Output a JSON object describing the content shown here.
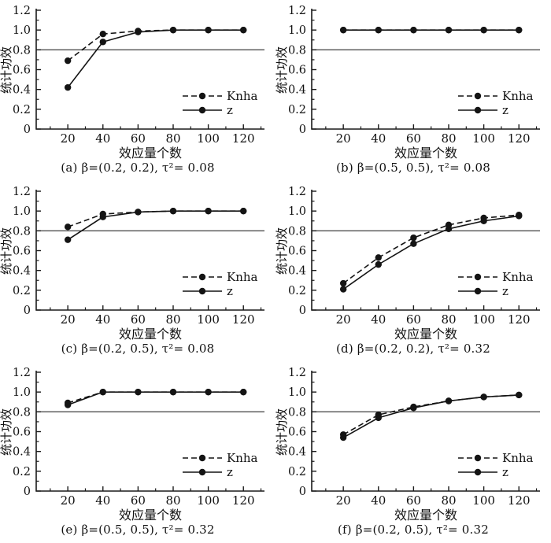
{
  "style": {
    "series_color": "#141414",
    "axis_color": "#1a1a1a",
    "reference_line_color": "#4f4f4f",
    "background": "#ffffff"
  },
  "chart_data": [
    {
      "id": "a",
      "type": "line",
      "title": "(a) β=(0.2, 0.2), τ²= 0.08",
      "xlabel": "效应量个数",
      "ylabel": "统计功效",
      "x": [
        20,
        40,
        60,
        80,
        100,
        120
      ],
      "xticks": [
        20,
        40,
        60,
        80,
        100,
        120
      ],
      "yticks": [
        0,
        0.2,
        0.4,
        0.6,
        0.8,
        1.0,
        1.2
      ],
      "xlim": [
        2,
        132
      ],
      "ylim": [
        0,
        1.2
      ],
      "grid": false,
      "reference_line_y": 0.8,
      "legend_position": "lower right",
      "series": [
        {
          "name": "Knha",
          "line": "dashed",
          "marker": "circle",
          "values": [
            0.69,
            0.96,
            0.99,
            1.0,
            1.0,
            1.0
          ]
        },
        {
          "name": "z",
          "line": "solid",
          "marker": "circle",
          "values": [
            0.42,
            0.88,
            0.98,
            1.0,
            1.0,
            1.0
          ]
        }
      ]
    },
    {
      "id": "b",
      "type": "line",
      "title": "(b) β=(0.5, 0.5), τ²= 0.08",
      "xlabel": "效应量个数",
      "ylabel": "统计功效",
      "x": [
        20,
        40,
        60,
        80,
        100,
        120
      ],
      "xticks": [
        20,
        40,
        60,
        80,
        100,
        120
      ],
      "yticks": [
        0,
        0.2,
        0.4,
        0.6,
        0.8,
        1.0,
        1.2
      ],
      "xlim": [
        2,
        132
      ],
      "ylim": [
        0,
        1.2
      ],
      "grid": false,
      "reference_line_y": 0.8,
      "legend_position": "lower right",
      "series": [
        {
          "name": "Knha",
          "line": "dashed",
          "marker": "circle",
          "values": [
            1.0,
            1.0,
            1.0,
            1.0,
            1.0,
            1.0
          ]
        },
        {
          "name": "z",
          "line": "solid",
          "marker": "circle",
          "values": [
            1.0,
            1.0,
            1.0,
            1.0,
            1.0,
            1.0
          ]
        }
      ]
    },
    {
      "id": "c",
      "type": "line",
      "title": "(c) β=(0.2, 0.5), τ²= 0.08",
      "xlabel": "效应量个数",
      "ylabel": "统计功效",
      "x": [
        20,
        40,
        60,
        80,
        100,
        120
      ],
      "xticks": [
        20,
        40,
        60,
        80,
        100,
        120
      ],
      "yticks": [
        0,
        0.2,
        0.4,
        0.6,
        0.8,
        1.0,
        1.2
      ],
      "xlim": [
        2,
        132
      ],
      "ylim": [
        0,
        1.2
      ],
      "grid": false,
      "reference_line_y": 0.8,
      "legend_position": "lower right",
      "series": [
        {
          "name": "Knha",
          "line": "dashed",
          "marker": "circle",
          "values": [
            0.84,
            0.97,
            0.99,
            1.0,
            1.0,
            1.0
          ]
        },
        {
          "name": "z",
          "line": "solid",
          "marker": "circle",
          "values": [
            0.71,
            0.94,
            0.99,
            1.0,
            1.0,
            1.0
          ]
        }
      ]
    },
    {
      "id": "d",
      "type": "line",
      "title": "(d) β=(0.2, 0.2), τ²= 0.32",
      "xlabel": "效应量个数",
      "ylabel": "统计功效",
      "x": [
        20,
        40,
        60,
        80,
        100,
        120
      ],
      "xticks": [
        20,
        40,
        60,
        80,
        100,
        120
      ],
      "yticks": [
        0,
        0.2,
        0.4,
        0.6,
        0.8,
        1.0,
        1.2
      ],
      "xlim": [
        2,
        132
      ],
      "ylim": [
        0,
        1.2
      ],
      "grid": false,
      "reference_line_y": 0.8,
      "legend_position": "lower right",
      "series": [
        {
          "name": "Knha",
          "line": "dashed",
          "marker": "circle",
          "values": [
            0.27,
            0.53,
            0.73,
            0.86,
            0.93,
            0.96
          ]
        },
        {
          "name": "z",
          "line": "solid",
          "marker": "circle",
          "values": [
            0.21,
            0.46,
            0.67,
            0.82,
            0.9,
            0.95
          ]
        }
      ]
    },
    {
      "id": "e",
      "type": "line",
      "title": "(e) β=(0.5, 0.5), τ²= 0.32",
      "xlabel": "效应量个数",
      "ylabel": "统计功效",
      "x": [
        20,
        40,
        60,
        80,
        100,
        120
      ],
      "xticks": [
        20,
        40,
        60,
        80,
        100,
        120
      ],
      "yticks": [
        0,
        0.2,
        0.4,
        0.6,
        0.8,
        1.0,
        1.2
      ],
      "xlim": [
        2,
        132
      ],
      "ylim": [
        0,
        1.2
      ],
      "grid": false,
      "reference_line_y": 0.8,
      "legend_position": "lower right",
      "series": [
        {
          "name": "Knha",
          "line": "dashed",
          "marker": "circle",
          "values": [
            0.89,
            1.0,
            1.0,
            1.0,
            1.0,
            1.0
          ]
        },
        {
          "name": "z",
          "line": "solid",
          "marker": "circle",
          "values": [
            0.87,
            1.0,
            1.0,
            1.0,
            1.0,
            1.0
          ]
        }
      ]
    },
    {
      "id": "f",
      "type": "line",
      "title": "(f) β=(0.2, 0.5), τ²= 0.32",
      "xlabel": "效应量个数",
      "ylabel": "统计功效",
      "x": [
        20,
        40,
        60,
        80,
        100,
        120
      ],
      "xticks": [
        20,
        40,
        60,
        80,
        100,
        120
      ],
      "yticks": [
        0,
        0.2,
        0.4,
        0.6,
        0.8,
        1.0,
        1.2
      ],
      "xlim": [
        2,
        132
      ],
      "ylim": [
        0,
        1.2
      ],
      "grid": false,
      "reference_line_y": 0.8,
      "legend_position": "lower right",
      "series": [
        {
          "name": "Knha",
          "line": "dashed",
          "marker": "circle",
          "values": [
            0.57,
            0.77,
            0.85,
            0.91,
            0.95,
            0.97
          ]
        },
        {
          "name": "z",
          "line": "solid",
          "marker": "circle",
          "values": [
            0.54,
            0.74,
            0.84,
            0.91,
            0.95,
            0.97
          ]
        }
      ]
    }
  ]
}
